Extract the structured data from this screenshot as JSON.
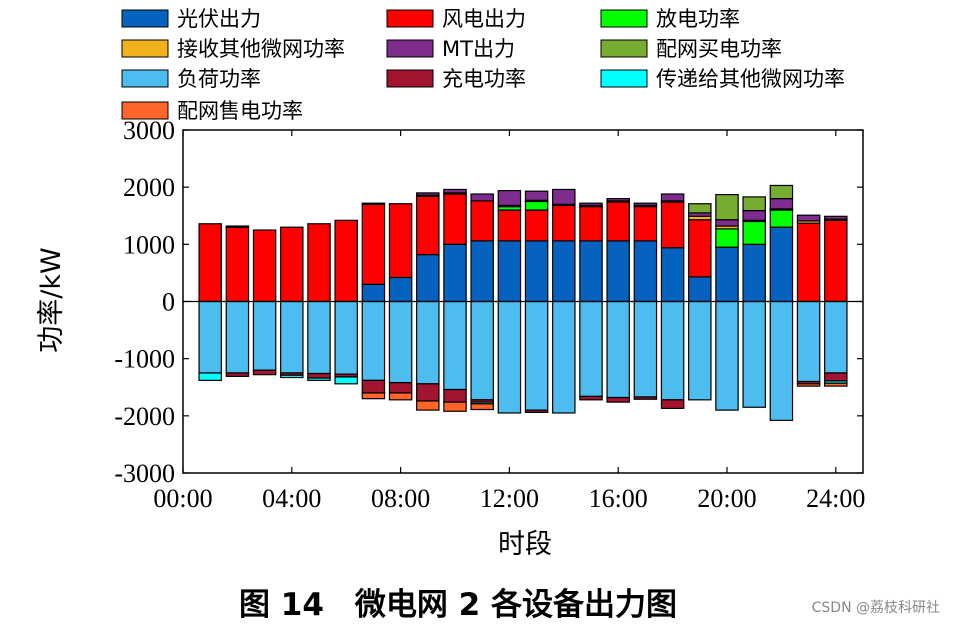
{
  "chart_data": {
    "type": "bar",
    "stacked": true,
    "xlabel": "时段",
    "ylabel": "功率/kW",
    "ylim": [
      -3000,
      3000
    ],
    "yticks": [
      3000,
      2000,
      1000,
      0,
      -1000,
      -2000,
      -3000
    ],
    "ytick_labels": [
      "3000",
      "2000",
      "1000",
      "0",
      "-1000",
      "-2000",
      "-3000"
    ],
    "xlim": [
      0,
      25
    ],
    "xticks": [
      0,
      4,
      8,
      12,
      16,
      20,
      24
    ],
    "xtick_labels": [
      "00:00",
      "04:00",
      "08:00",
      "12:00",
      "16:00",
      "20:00",
      "24:00"
    ],
    "x": [
      1,
      2,
      3,
      4,
      5,
      6,
      7,
      8,
      9,
      10,
      11,
      12,
      13,
      14,
      15,
      16,
      17,
      18,
      19,
      20,
      21,
      22,
      23,
      24
    ],
    "grid": false,
    "legend_position": "top",
    "series": [
      {
        "name": "光伏出力",
        "color": "#0563BF",
        "sign": "positive",
        "values": [
          0,
          0,
          0,
          0,
          0,
          0,
          300,
          420,
          820,
          1000,
          1060,
          1060,
          1060,
          1060,
          1060,
          1060,
          1060,
          940,
          430,
          950,
          1000,
          1300,
          0,
          0
        ]
      },
      {
        "name": "风电出力",
        "color": "#FF0000",
        "sign": "positive",
        "values": [
          1360,
          1300,
          1250,
          1300,
          1360,
          1420,
          1400,
          1290,
          1020,
          880,
          700,
          540,
          540,
          620,
          600,
          680,
          600,
          800,
          1000,
          0,
          0,
          0,
          1370,
          1420
        ]
      },
      {
        "name": "放电功率",
        "color": "#00FF00",
        "sign": "positive",
        "values": [
          0,
          0,
          0,
          0,
          0,
          0,
          0,
          0,
          0,
          0,
          0,
          60,
          150,
          0,
          0,
          0,
          0,
          0,
          0,
          320,
          400,
          300,
          0,
          0
        ]
      },
      {
        "name": "接收其他微网功率",
        "color": "#F0B21E",
        "sign": "positive",
        "values": [
          0,
          20,
          0,
          0,
          0,
          0,
          20,
          0,
          20,
          20,
          0,
          20,
          20,
          20,
          20,
          20,
          20,
          20,
          60,
          50,
          20,
          20,
          40,
          20
        ]
      },
      {
        "name": "MT出力",
        "color": "#7E2D8E",
        "sign": "positive",
        "values": [
          0,
          0,
          0,
          0,
          0,
          0,
          0,
          0,
          40,
          60,
          120,
          260,
          160,
          260,
          40,
          40,
          40,
          120,
          60,
          110,
          170,
          180,
          100,
          50
        ]
      },
      {
        "name": "配网买电功率",
        "color": "#76AC30",
        "sign": "positive",
        "values": [
          0,
          0,
          0,
          0,
          0,
          0,
          0,
          0,
          0,
          0,
          0,
          0,
          0,
          0,
          0,
          0,
          0,
          0,
          160,
          440,
          240,
          230,
          0,
          0
        ]
      },
      {
        "name": "负荷功率",
        "color": "#4CBDEE",
        "sign": "negative",
        "values": [
          -1250,
          -1250,
          -1200,
          -1250,
          -1260,
          -1270,
          -1380,
          -1420,
          -1440,
          -1540,
          -1720,
          -1950,
          -1900,
          -1950,
          -1660,
          -1680,
          -1670,
          -1720,
          -1720,
          -1900,
          -1850,
          -2080,
          -1400,
          -1250
        ]
      },
      {
        "name": "充电功率",
        "color": "#A2142F",
        "sign": "negative",
        "values": [
          0,
          -60,
          -80,
          -40,
          -80,
          -50,
          -220,
          -180,
          -300,
          -220,
          -40,
          0,
          -40,
          0,
          -60,
          -80,
          -40,
          -150,
          0,
          0,
          0,
          0,
          -40,
          -140
        ]
      },
      {
        "name": "传递给其他微网功率",
        "color": "#00FFFF",
        "sign": "negative",
        "values": [
          -130,
          0,
          0,
          -40,
          -40,
          -120,
          0,
          0,
          0,
          0,
          -30,
          0,
          0,
          0,
          0,
          0,
          0,
          0,
          0,
          0,
          0,
          0,
          0,
          -40
        ]
      },
      {
        "name": "配网售电功率",
        "color": "#FF6528",
        "sign": "negative",
        "values": [
          0,
          0,
          0,
          0,
          0,
          0,
          -100,
          -120,
          -160,
          -160,
          -100,
          0,
          0,
          0,
          0,
          0,
          0,
          0,
          0,
          0,
          0,
          0,
          -40,
          -50
        ]
      }
    ]
  },
  "caption": "图 14　微电网 2 各设备出力图",
  "watermark": "CSDN @荔枝科研社"
}
